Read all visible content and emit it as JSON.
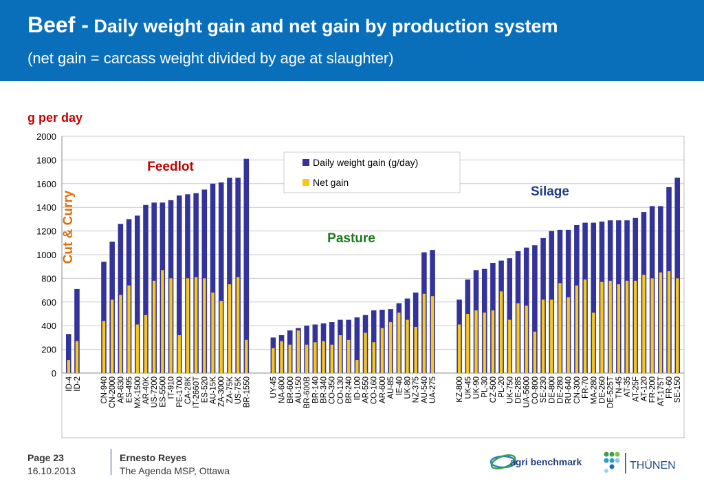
{
  "header": {
    "title_main": "Beef -",
    "title_rest": "Daily weight gain and net gain by production system",
    "subtitle": "(net gain = carcass weight divided by age at slaughter)"
  },
  "colors": {
    "header_bg": "#0a6fba",
    "daily": "#33339a",
    "net": "#f7c818"
  },
  "chart_data": {
    "type": "bar",
    "ylabel": "g per day",
    "ylim": [
      0,
      2000
    ],
    "yticks": [
      0,
      200,
      400,
      600,
      800,
      1000,
      1200,
      1400,
      1600,
      1800,
      2000
    ],
    "legend": {
      "placement": "top-center",
      "entries": [
        "Daily weight gain (g/day)",
        "Net gain"
      ]
    },
    "series": [
      {
        "name": "Daily weight gain (g/day)",
        "color": "#33339a"
      },
      {
        "name": "Net gain",
        "color": "#f7c818"
      }
    ],
    "groups": [
      {
        "label": "Cut & Curry",
        "label_color": "#e36c09",
        "categories": [
          "ID-4",
          "ID-2"
        ],
        "daily": [
          330,
          710
        ],
        "net": [
          110,
          270
        ]
      },
      {
        "label": "Feedlot",
        "label_color": "#c00000",
        "categories": [
          "CN-940",
          "CN-2000",
          "AR-630",
          "ES-495",
          "MX-1500",
          "AR-40K",
          "US-7200",
          "ES-5500",
          "IT-910",
          "PE-1700",
          "CA-28K",
          "IT-2660T",
          "ES-520",
          "AU-15K",
          "ZA-3000",
          "ZA-75K",
          "US-75K",
          "BR-1550"
        ],
        "daily": [
          940,
          1110,
          1260,
          1300,
          1330,
          1420,
          1440,
          1440,
          1460,
          1500,
          1510,
          1520,
          1550,
          1600,
          1610,
          1650,
          1650,
          1810
        ],
        "net": [
          440,
          620,
          660,
          740,
          410,
          490,
          780,
          870,
          800,
          320,
          800,
          810,
          800,
          680,
          610,
          750,
          810,
          280
        ]
      },
      {
        "label": "Pasture",
        "label_color": "#1a7a1a",
        "categories": [
          "UY-45",
          "NA-600",
          "BR-600",
          "AU-150",
          "BR-600B",
          "BR-140",
          "BR-340",
          "CO-350",
          "CO-130",
          "BR-240",
          "ID-100",
          "AR-550",
          "CO-160",
          "AR-600",
          "AU-85",
          "IE-40",
          "UK-80",
          "NZ-375",
          "AU-540",
          "UA-275"
        ],
        "daily": [
          300,
          320,
          360,
          380,
          400,
          410,
          420,
          430,
          450,
          450,
          470,
          490,
          530,
          535,
          540,
          590,
          630,
          680,
          1020,
          1040
        ],
        "net": [
          210,
          270,
          240,
          360,
          240,
          260,
          270,
          240,
          320,
          280,
          110,
          340,
          260,
          380,
          430,
          510,
          450,
          390,
          670,
          650
        ]
      },
      {
        "label": "Silage",
        "label_color": "#1f3c88",
        "categories": [
          "KZ-800",
          "UK-45",
          "UK-90",
          "PL-30",
          "CZ-500",
          "PL-20",
          "UK-750",
          "DE-285",
          "UA-5600",
          "CO-800",
          "SE-230",
          "DE-800",
          "DE-280",
          "RU-640",
          "CN-300",
          "FR-70",
          "MA-280",
          "DE-260",
          "DE-525T",
          "TN-45",
          "AT-35",
          "AT-25F",
          "AT-120",
          "FR-200",
          "AT-175T",
          "FR-60",
          "SE-150"
        ],
        "daily": [
          620,
          790,
          870,
          880,
          930,
          950,
          970,
          1030,
          1060,
          1080,
          1140,
          1200,
          1210,
          1210,
          1250,
          1270,
          1270,
          1280,
          1290,
          1290,
          1290,
          1310,
          1360,
          1410,
          1410,
          1570,
          1650
        ],
        "net": [
          410,
          500,
          530,
          510,
          530,
          690,
          450,
          590,
          570,
          350,
          620,
          620,
          760,
          640,
          740,
          790,
          510,
          770,
          780,
          750,
          780,
          780,
          830,
          800,
          850,
          860,
          800
        ]
      }
    ]
  },
  "footer": {
    "page": "Page 23",
    "date": "16.10.2013",
    "author": "Ernesto Reyes",
    "event": "The Agenda MSP, Ottawa",
    "logo_agri": "agri benchmark",
    "logo_thunen": "THÜNEN"
  }
}
